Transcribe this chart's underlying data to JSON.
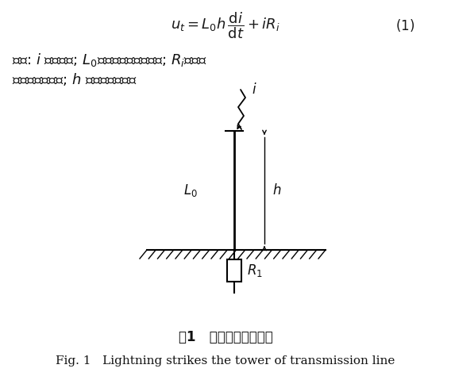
{
  "background_color": "#ffffff",
  "formula_number": "(1)",
  "description_line1": "式中: $i$ 为雷电流; $L_0$为杆塔单位长度电感; $R_i$为杆塔",
  "description_line2": "的冲击接地阻抗; $h$ 为杆塔的高度。",
  "label_L0": "$L_0$",
  "label_h": "$h$",
  "label_i": "$i$",
  "label_R1": "$R_1$",
  "caption_cn": "图1   雷直击杆塔示意图",
  "caption_en": "Fig. 1   Lightning strikes the tower of transmission line",
  "line_color": "#000000",
  "font_size_formula": 13,
  "font_size_desc": 13,
  "font_size_label": 12,
  "font_size_caption_cn": 12,
  "font_size_caption_en": 11
}
